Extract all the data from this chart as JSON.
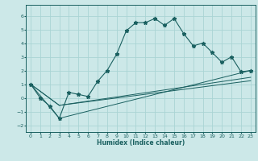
{
  "xlabel": "Humidex (Indice chaleur)",
  "bg_color": "#cce8e8",
  "line_color": "#1a6060",
  "grid_color": "#aad4d4",
  "xlim": [
    -0.5,
    23.5
  ],
  "ylim": [
    -2.5,
    6.8
  ],
  "xticks": [
    0,
    1,
    2,
    3,
    4,
    5,
    6,
    7,
    8,
    9,
    10,
    11,
    12,
    13,
    14,
    15,
    16,
    17,
    18,
    19,
    20,
    21,
    22,
    23
  ],
  "yticks": [
    -2,
    -1,
    0,
    1,
    2,
    3,
    4,
    5,
    6
  ],
  "main_x": [
    0,
    1,
    2,
    3,
    4,
    5,
    6,
    7,
    8,
    9,
    10,
    11,
    12,
    13,
    14,
    15,
    16,
    17,
    18,
    19,
    20,
    21,
    22,
    23
  ],
  "main_y": [
    1.0,
    0.0,
    -0.6,
    -1.5,
    0.4,
    0.25,
    0.1,
    1.2,
    2.0,
    3.2,
    4.9,
    5.5,
    5.5,
    5.8,
    5.3,
    5.8,
    4.7,
    3.8,
    4.0,
    3.3,
    2.6,
    3.0,
    1.9,
    2.0
  ],
  "line1_x": [
    0,
    3,
    23
  ],
  "line1_y": [
    1.0,
    -0.55,
    1.5
  ],
  "line2_x": [
    0,
    3,
    23
  ],
  "line2_y": [
    1.0,
    -1.5,
    2.0
  ],
  "line3_x": [
    0,
    3,
    23
  ],
  "line3_y": [
    1.0,
    -0.55,
    1.25
  ],
  "marker": "*",
  "marker_size": 3.5
}
